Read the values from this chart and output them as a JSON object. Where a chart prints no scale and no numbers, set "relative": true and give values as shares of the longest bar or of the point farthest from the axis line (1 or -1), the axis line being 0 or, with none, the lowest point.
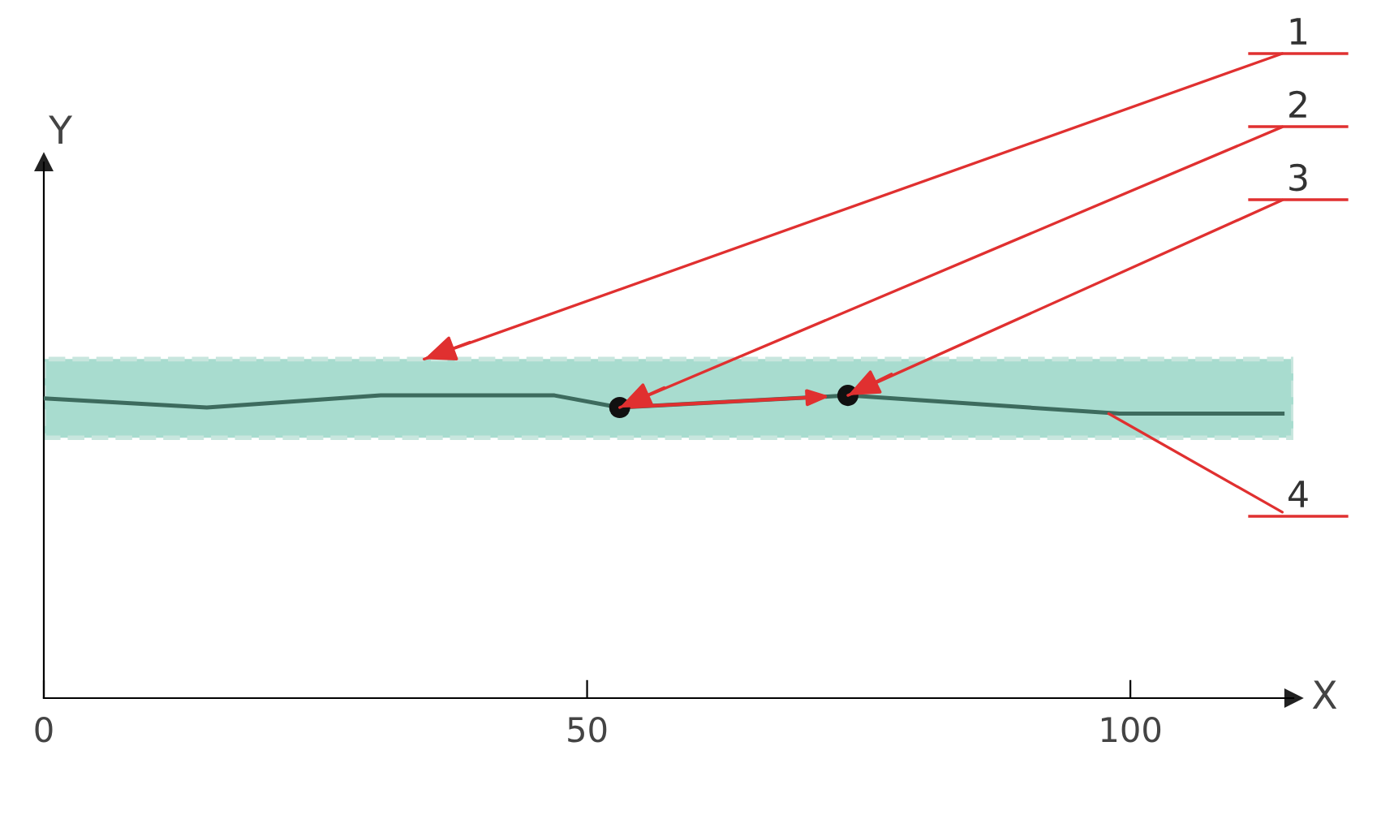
{
  "chart_data": {
    "type": "line",
    "relative": true,
    "xlabel": "X",
    "x": [
      0,
      15,
      31,
      47,
      53,
      74,
      99,
      114
    ],
    "xlim": [
      0,
      115
    ],
    "xticks": [
      0,
      50,
      100
    ],
    "series": [
      {
        "color": "#3d6b5e",
        "values": [
          0.99,
          0.96,
          1,
          1,
          0.96,
          1,
          0.94,
          0.94
        ]
      },
      {
        "type": "scatter",
        "color": "#111111",
        "x": [
          53,
          74
        ],
        "values": [
          0.96,
          1
        ]
      }
    ],
    "bands": [
      {
        "axis": "y",
        "from": 0.86,
        "to": 1.12,
        "color": "#a8dccf"
      }
    ],
    "annotations": [
      {
        "text": "1",
        "x": 35,
        "y": 1.12
      },
      {
        "text": "2",
        "x": 53,
        "y": 0.96
      },
      {
        "text": "3",
        "x": 74,
        "y": 1
      },
      {
        "text": "4",
        "x": 98,
        "y": 0.94
      },
      "Y"
    ],
    "grid": false,
    "legend": false
  }
}
